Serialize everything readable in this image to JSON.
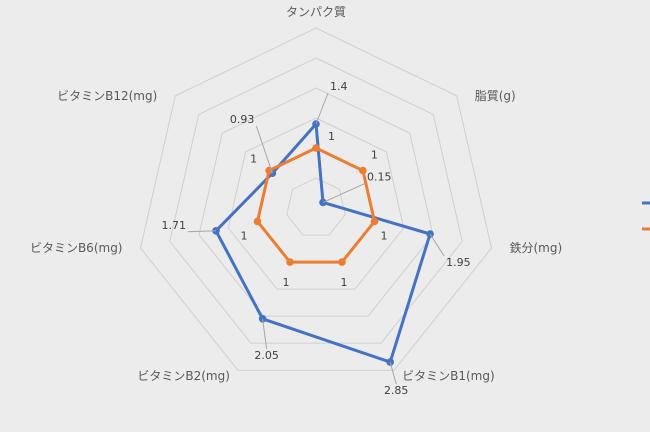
{
  "chart_data": {
    "type": "radar",
    "categories": [
      "タンパク質",
      "脂質(g)",
      "鉄分(mg)",
      "ビタミンB1(mg)",
      "ビタミンB2(mg)",
      "ビタミンB6(mg)",
      "ビタミンB12(mg)"
    ],
    "series": [
      {
        "color": "#4472c4",
        "values": [
          1.4,
          0.15,
          1.95,
          2.85,
          2.05,
          1.71,
          0.93
        ],
        "labels": [
          "1.4",
          "0.15",
          "1.95",
          "2.85",
          "2.05",
          "1.71",
          "0.93"
        ]
      },
      {
        "color": "#ed7d31",
        "values": [
          1,
          1,
          1,
          1,
          1,
          1,
          1
        ],
        "labels": [
          "1",
          "1",
          "1",
          "1",
          "1",
          "1",
          "1"
        ]
      }
    ],
    "rlim": [
      0,
      3
    ],
    "grid": true,
    "legend_position": "right"
  }
}
